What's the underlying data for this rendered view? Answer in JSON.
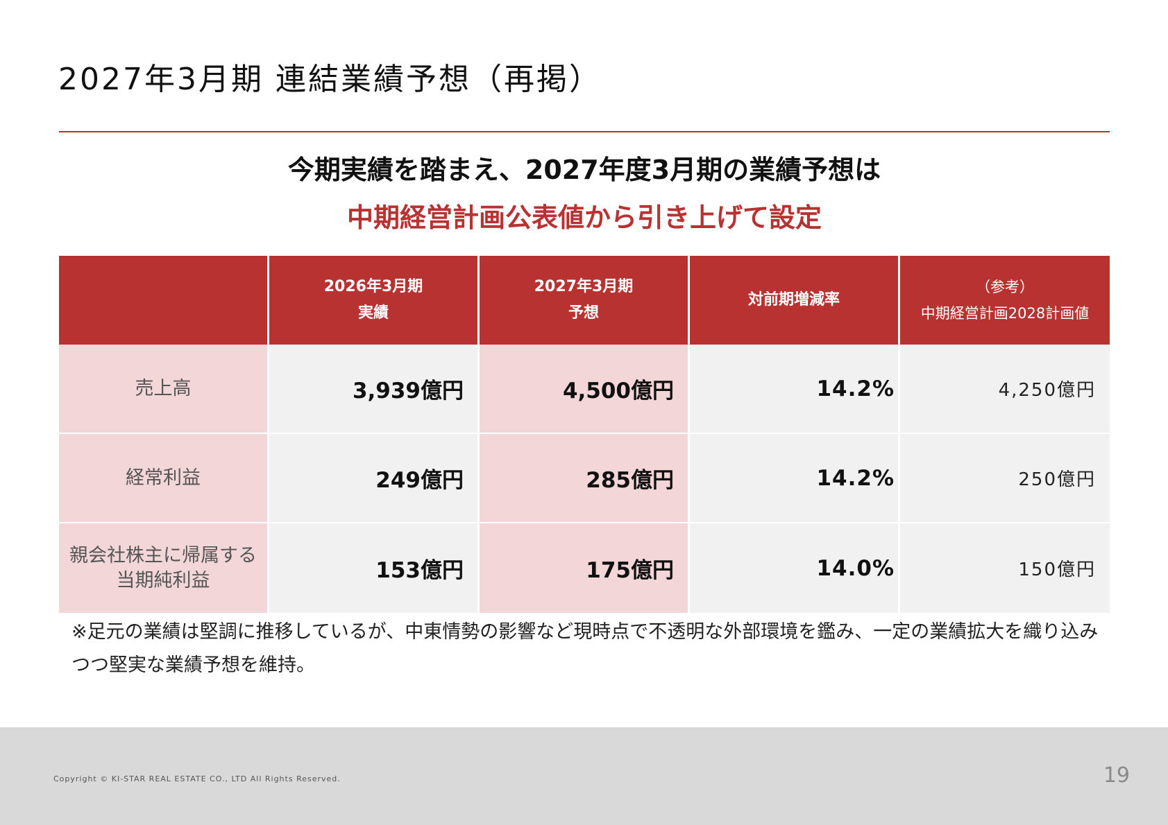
{
  "title": "2027年3月期 連結業績予想（再掲）",
  "headline": {
    "line1": "今期実績を踏まえ、2027年度3月期の業績予想は",
    "line2": "中期経営計画公表値から引き上げて設定"
  },
  "table": {
    "headers": [
      {
        "line1": "",
        "line2": ""
      },
      {
        "line1": "2026年3月期",
        "line2": "実績"
      },
      {
        "line1": "2027年3月期",
        "line2": "予想"
      },
      {
        "line1": "対前期増減率",
        "line2": ""
      },
      {
        "line1": "（参考）",
        "line2": "中期経営計画2028計画値"
      }
    ],
    "rows": [
      {
        "label_line1": "売上高",
        "label_line2": "",
        "actual": "3,939億円",
        "forecast": "4,500億円",
        "rate": "14.2%",
        "plan": "4,250億円"
      },
      {
        "label_line1": "経常利益",
        "label_line2": "",
        "actual": "249億円",
        "forecast": "285億円",
        "rate": "14.2%",
        "plan": "250億円"
      },
      {
        "label_line1": "親会社株主に帰属する",
        "label_line2": "当期純利益",
        "actual": "153億円",
        "forecast": "175億円",
        "rate": "14.0%",
        "plan": "150億円"
      }
    ]
  },
  "note": "※足元の業績は堅調に推移しているが、中東情勢の影響など現時点で不透明な外部環境を鑑み、一定の業績拡大を織り込みつつ堅実な業績予想を維持。",
  "footer": {
    "copyright": "Copyright © KI-STAR REAL ESTATE CO., LTD All Rights Reserved.",
    "page_number": "19"
  },
  "colors": {
    "accent": "#b83232",
    "highlight": "#f3d6d8",
    "neutral_cell": "#f1f1f1",
    "footer_bg": "#d9d9d9"
  }
}
